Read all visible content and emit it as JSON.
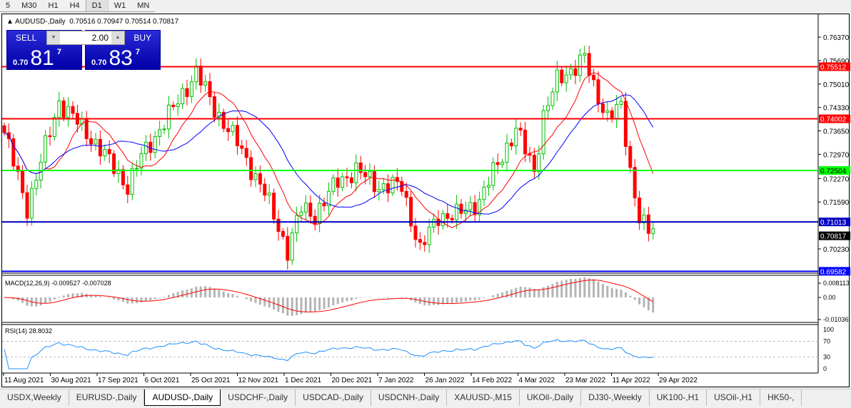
{
  "timeframes": [
    "5",
    "M30",
    "H1",
    "H4",
    "D1",
    "W1",
    "MN"
  ],
  "active_timeframe": "D1",
  "chart": {
    "title": "AUDUSD-,Daily",
    "ohlc": "0.70516 0.70947 0.70514 0.70817",
    "trade": {
      "sell_label": "SELL",
      "buy_label": "BUY",
      "lot": "2.00",
      "sell_prefix": "0.70",
      "sell_main": "81",
      "sell_sup": "7",
      "buy_prefix": "0.70",
      "buy_main": "83",
      "buy_sup": "7"
    },
    "price_axis": [
      "0.76370",
      "0.75690",
      "0.75010",
      "0.74330",
      "0.73650",
      "0.72970",
      "0.72270",
      "0.71590",
      "0.70230"
    ],
    "hlines": [
      {
        "price": 0.75512,
        "label": "0.75512",
        "color": "#ff0000"
      },
      {
        "price": 0.74002,
        "label": "0.74002",
        "color": "#ff0000"
      },
      {
        "price": 0.72504,
        "label": "0.72504",
        "color": "#00ff00"
      },
      {
        "price": 0.71013,
        "label": "0.71013",
        "color": "#0000c0"
      },
      {
        "price": 0.69582,
        "label": "0.69582",
        "color": "#0000ff"
      }
    ],
    "current_price": "0.70817",
    "price_series": [
      [
        0,
        0.736
      ],
      [
        5,
        0.7143
      ],
      [
        12,
        0.745
      ],
      [
        20,
        0.733
      ],
      [
        27,
        0.7205
      ],
      [
        30,
        0.729
      ],
      [
        37,
        0.743
      ],
      [
        42,
        0.7536
      ],
      [
        46,
        0.743
      ],
      [
        51,
        0.733
      ],
      [
        57,
        0.7185
      ],
      [
        62,
        0.7019
      ],
      [
        65,
        0.714
      ],
      [
        68,
        0.7122
      ],
      [
        73,
        0.722
      ],
      [
        77,
        0.725
      ],
      [
        82,
        0.7205
      ],
      [
        87,
        0.7205
      ],
      [
        91,
        0.7019
      ],
      [
        95,
        0.712
      ],
      [
        99,
        0.712
      ],
      [
        104,
        0.7164
      ],
      [
        108,
        0.727
      ],
      [
        112,
        0.737
      ],
      [
        116,
        0.725
      ],
      [
        118,
        0.741
      ],
      [
        121,
        0.751
      ],
      [
        127,
        0.7577
      ],
      [
        129,
        0.749
      ],
      [
        132,
        0.741
      ],
      [
        135,
        0.743
      ],
      [
        137,
        0.725
      ],
      [
        139,
        0.712
      ],
      [
        141,
        0.7071
      ],
      [
        142,
        0.70817
      ]
    ],
    "colors": {
      "bull": "#00c000",
      "bear": "#ff0000",
      "ma_fast": "#ff0000",
      "ma_slow": "#0000ff",
      "macd_hist": "#b4b4b4",
      "macd_signal": "#ff0000",
      "rsi": "#1e90ff"
    },
    "macd": {
      "label": "MACD(12,26,9) -0.009527 -0.007028",
      "axis": [
        "0.008113",
        "0.00",
        "-0.01036"
      ]
    },
    "rsi": {
      "label": "RSI(14) 28.8032",
      "axis": [
        "100",
        "70",
        "30",
        "0"
      ]
    },
    "dates": [
      "11 Aug 2021",
      "30 Aug 2021",
      "17 Sep 2021",
      "6 Oct 2021",
      "25 Oct 2021",
      "12 Nov 2021",
      "1 Dec 2021",
      "20 Dec 2021",
      "7 Jan 2022",
      "26 Jan 2022",
      "14 Feb 2022",
      "4 Mar 2022",
      "23 Mar 2022",
      "11 Apr 2022",
      "29 Apr 2022"
    ]
  },
  "tabs": [
    "USDX,Weekly",
    "EURUSD-,Daily",
    "AUDUSD-,Daily",
    "USDCHF-,Daily",
    "USDCAD-,Daily",
    "USDCNH-,Daily",
    "XAUUSD-,M15",
    "UKOil-,Daily",
    "DJ30-,Weekly",
    "UK100-,H1",
    "USOil-,H1",
    "HK50-,"
  ],
  "active_tab": "AUDUSD-,Daily"
}
